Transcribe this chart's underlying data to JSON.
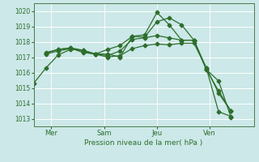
{
  "title": "Pression niveau de la mer( hPa )",
  "bg_color": "#cce8e8",
  "grid_color": "#ffffff",
  "line_color": "#2d6e2d",
  "vline_color": "#4a7a4a",
  "ylim": [
    1012.5,
    1020.5
  ],
  "yticks": [
    1013,
    1014,
    1015,
    1016,
    1017,
    1018,
    1019,
    1020
  ],
  "xtick_labels": [
    "Mer",
    "Sam",
    "Jeu",
    "Ven"
  ],
  "xtick_positions": [
    1,
    4,
    7,
    10
  ],
  "vline_positions": [
    1,
    4,
    7,
    10
  ],
  "xlim": [
    0,
    12.5
  ],
  "series": [
    {
      "x": [
        0,
        0.7,
        1.4,
        2.1,
        2.8,
        3.5,
        4.2,
        4.9,
        5.6,
        6.3,
        7.0,
        7.7,
        8.4,
        9.1,
        9.8,
        10.5,
        11.2
      ],
      "y": [
        1015.3,
        1016.3,
        1017.15,
        1017.5,
        1017.45,
        1017.2,
        1017.2,
        1017.0,
        1018.35,
        1018.3,
        1019.3,
        1019.55,
        1019.1,
        1018.1,
        1016.2,
        1015.45,
        1013.1
      ]
    },
    {
      "x": [
        0.7,
        1.4,
        2.1,
        2.8,
        3.5,
        4.2,
        4.9,
        5.6,
        6.3,
        7.0,
        7.7,
        8.4,
        9.1,
        9.8,
        10.5,
        11.2
      ],
      "y": [
        1017.25,
        1017.5,
        1017.6,
        1017.3,
        1017.2,
        1017.5,
        1017.75,
        1018.35,
        1018.45,
        1019.9,
        1019.1,
        1018.1,
        1018.1,
        1016.2,
        1014.8,
        1013.5
      ]
    },
    {
      "x": [
        0.7,
        1.4,
        2.1,
        2.8,
        3.5,
        4.2,
        4.9,
        5.6,
        6.3,
        7.0,
        7.7,
        8.4,
        9.1,
        9.8,
        10.5,
        11.2
      ],
      "y": [
        1017.2,
        1017.4,
        1017.55,
        1017.35,
        1017.2,
        1017.1,
        1017.4,
        1018.15,
        1018.25,
        1018.4,
        1018.25,
        1018.1,
        1018.1,
        1016.3,
        1014.65,
        1013.5
      ]
    },
    {
      "x": [
        0.7,
        1.4,
        2.1,
        2.8,
        3.5,
        4.2,
        4.9,
        5.6,
        6.3,
        7.0,
        7.7,
        8.4,
        9.1,
        9.8,
        10.5,
        11.2
      ],
      "y": [
        1017.3,
        1017.5,
        1017.6,
        1017.45,
        1017.2,
        1017.0,
        1017.1,
        1017.55,
        1017.75,
        1017.85,
        1017.8,
        1017.9,
        1017.9,
        1016.3,
        1013.45,
        1013.15
      ]
    }
  ]
}
